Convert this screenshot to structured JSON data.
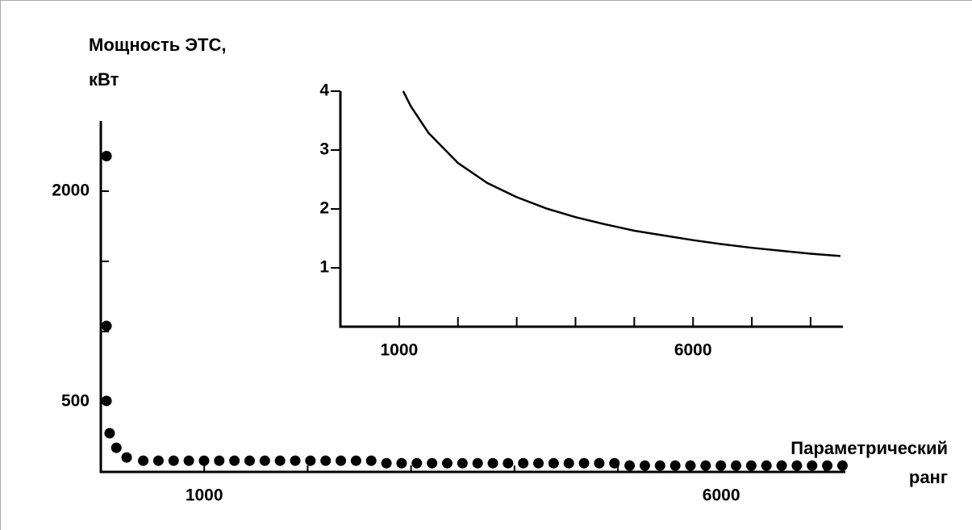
{
  "chart_data": [
    {
      "type": "scatter",
      "ylabel": [
        "Мощность ЭТС,",
        "кВт"
      ],
      "xlabel": [
        "Параметрический",
        "ранг"
      ],
      "color": "#000000",
      "x": [
        55,
        55,
        55,
        85,
        150,
        250,
        410,
        557,
        704,
        851,
        998,
        1145,
        1292,
        1439,
        1586,
        1733,
        1880,
        2027,
        2174,
        2321,
        2468,
        2615,
        2762,
        2909,
        3056,
        3203,
        3350,
        3497,
        3644,
        3791,
        3938,
        4085,
        4232,
        4379,
        4526,
        4673,
        4820,
        4967,
        5114,
        5261,
        5408,
        5555,
        5702,
        5849,
        5996,
        6143,
        6290,
        6437,
        6584,
        6731,
        6878,
        7025,
        7172
      ],
      "values": [
        2250,
        1040,
        506,
        276,
        172,
        103,
        80,
        80,
        80,
        80,
        80,
        80,
        80,
        80,
        80,
        80,
        80,
        80,
        80,
        80,
        80,
        80,
        62,
        62,
        62,
        62,
        62,
        62,
        62,
        62,
        62,
        62,
        62,
        62,
        62,
        62,
        62,
        62,
        45,
        45,
        45,
        45,
        45,
        45,
        45,
        45,
        45,
        45,
        45,
        45,
        45,
        45,
        45
      ],
      "xlim": [
        0,
        7200
      ],
      "ylim": [
        0,
        2500
      ],
      "xticks": [
        1000,
        6000
      ],
      "xminor": [
        2000,
        3000,
        4000,
        5000,
        7000
      ],
      "yticks": [
        500,
        2000
      ],
      "yminor": [
        1000,
        1500
      ]
    },
    {
      "type": "line",
      "color": "#000000",
      "x": [
        1068,
        1200,
        1500,
        2000,
        2500,
        3000,
        3500,
        4000,
        4500,
        5000,
        5500,
        6000,
        6500,
        7000,
        7500,
        8000,
        8507
      ],
      "values": [
        4.0,
        3.74,
        3.29,
        2.78,
        2.44,
        2.2,
        2.01,
        1.86,
        1.74,
        1.63,
        1.55,
        1.47,
        1.4,
        1.34,
        1.29,
        1.24,
        1.2
      ],
      "xlim": [
        0,
        8550
      ],
      "ylim": [
        0,
        4
      ],
      "xticks": [
        1000,
        6000
      ],
      "xminor": [
        2000,
        3000,
        4000,
        5000,
        7000,
        8000
      ],
      "yticks": [
        1,
        2,
        3,
        4
      ]
    }
  ]
}
